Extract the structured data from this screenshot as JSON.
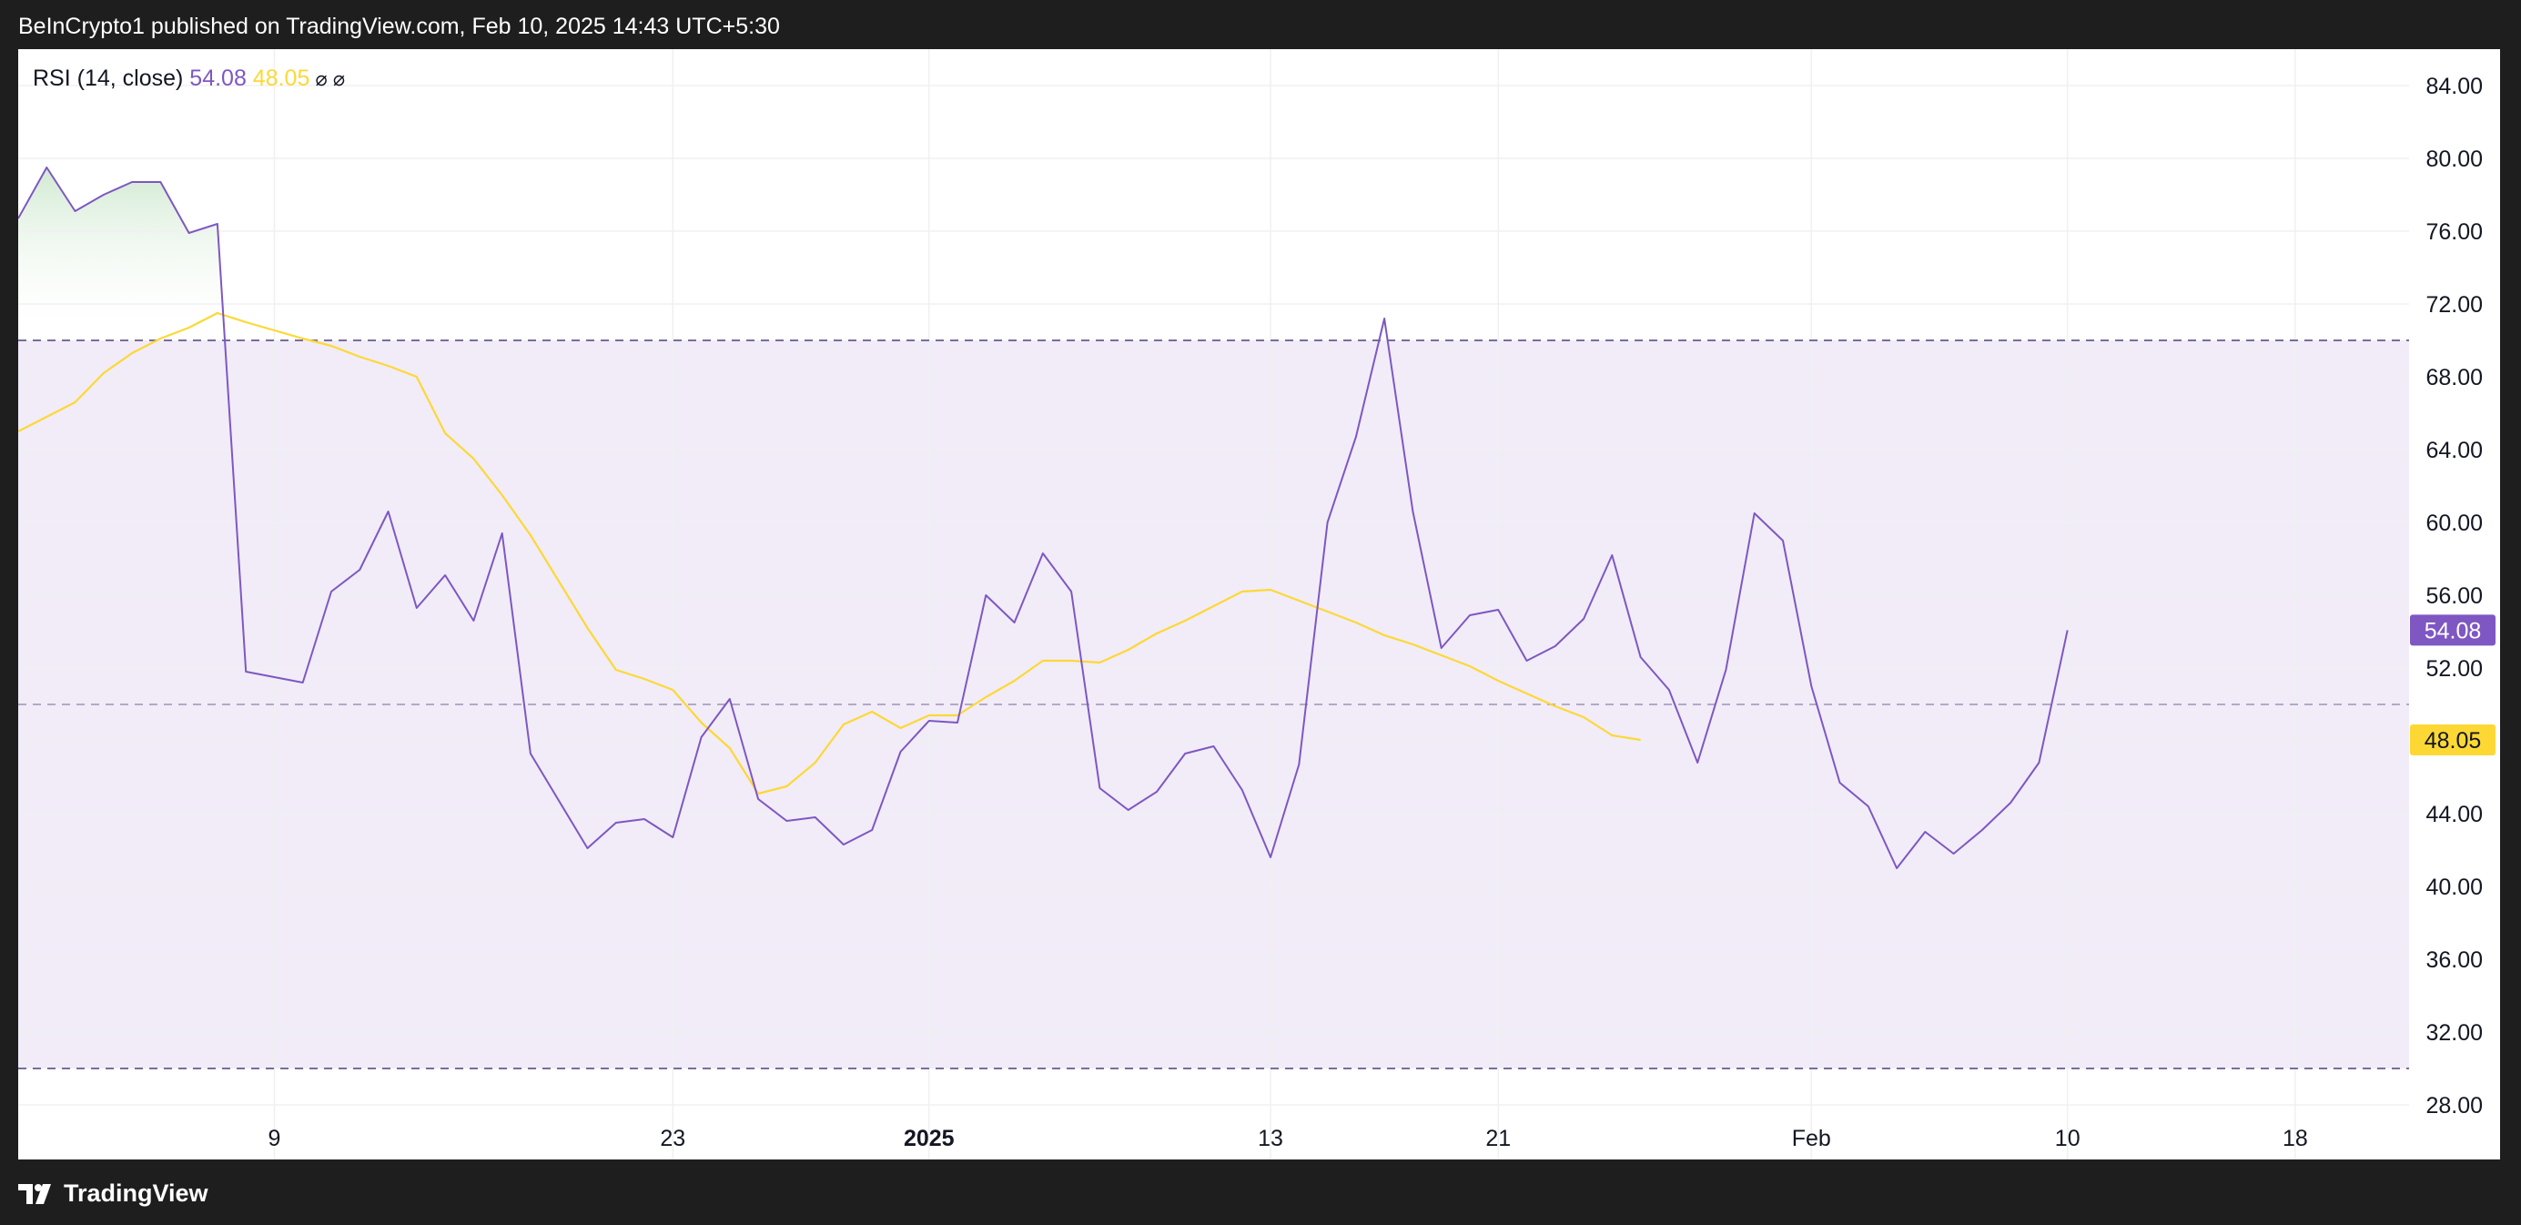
{
  "header": {
    "publisher_text": "BeInCrypto1 published on TradingView.com, Feb 10, 2025 14:43 UTC+5:30"
  },
  "footer": {
    "brand": "TradingView",
    "logo_icon": "tradingview-logo-icon"
  },
  "colors": {
    "rsi": "#7e57c2",
    "rsi_ma": "#fdd835",
    "band_fill": "#f1ecf8",
    "overbought_fill_top": "#c8e6c9",
    "grid": "#f0f0f3",
    "dashed": "#7a6d99",
    "mid_dashed": "#b3a9c9"
  },
  "chart_data": {
    "type": "line",
    "indicator_label": "RSI (14, close)",
    "current_values": {
      "rsi": "54.08",
      "rsi_ma": "48.05"
    },
    "legend_icons": [
      "hide-icon",
      "hide-icon"
    ],
    "legend_symbols": [
      "⌀",
      "⌀"
    ],
    "ylim": [
      25,
      86
    ],
    "y_ticks": [
      "84.00",
      "80.00",
      "76.00",
      "72.00",
      "68.00",
      "64.00",
      "60.00",
      "56.00",
      "52.00",
      "48.00",
      "44.00",
      "40.00",
      "36.00",
      "32.00",
      "28.00"
    ],
    "x_ticks": [
      {
        "label": "9",
        "date": "2024-12-09",
        "bold": false
      },
      {
        "label": "23",
        "date": "2024-12-23",
        "bold": false
      },
      {
        "label": "2025",
        "date": "2025-01-01",
        "bold": true
      },
      {
        "label": "13",
        "date": "2025-01-13",
        "bold": false
      },
      {
        "label": "21",
        "date": "2025-01-21",
        "bold": false
      },
      {
        "label": "Feb",
        "date": "2025-02-01",
        "bold": false
      },
      {
        "label": "10",
        "date": "2025-02-10",
        "bold": false
      },
      {
        "label": "18",
        "date": "2025-02-18",
        "bold": false
      }
    ],
    "x_range": [
      "2024-11-30",
      "2025-02-22"
    ],
    "bands": {
      "upper": 70,
      "middle": 50,
      "lower": 30
    },
    "series": [
      {
        "name": "RSI",
        "color": "#7e57c2",
        "points": [
          [
            "2024-11-30",
            76.7
          ],
          [
            "2024-12-01",
            79.5
          ],
          [
            "2024-12-02",
            77.1
          ],
          [
            "2024-12-03",
            78.0
          ],
          [
            "2024-12-04",
            78.7
          ],
          [
            "2024-12-05",
            78.7
          ],
          [
            "2024-12-06",
            75.9
          ],
          [
            "2024-12-07",
            76.4
          ],
          [
            "2024-12-08",
            51.8
          ],
          [
            "2024-12-10",
            51.2
          ],
          [
            "2024-12-11",
            56.2
          ],
          [
            "2024-12-12",
            57.4
          ],
          [
            "2024-12-13",
            60.6
          ],
          [
            "2024-12-14",
            55.3
          ],
          [
            "2024-12-15",
            57.1
          ],
          [
            "2024-12-16",
            54.6
          ],
          [
            "2024-12-17",
            59.4
          ],
          [
            "2024-12-18",
            47.3
          ],
          [
            "2024-12-20",
            42.1
          ],
          [
            "2024-12-21",
            43.5
          ],
          [
            "2024-12-22",
            43.7
          ],
          [
            "2024-12-23",
            42.7
          ],
          [
            "2024-12-24",
            48.2
          ],
          [
            "2024-12-25",
            50.3
          ],
          [
            "2024-12-26",
            44.8
          ],
          [
            "2024-12-27",
            43.6
          ],
          [
            "2024-12-28",
            43.8
          ],
          [
            "2024-12-29",
            42.3
          ],
          [
            "2024-12-30",
            43.1
          ],
          [
            "2024-12-31",
            47.4
          ],
          [
            "2025-01-01",
            49.1
          ],
          [
            "2025-01-02",
            49.0
          ],
          [
            "2025-01-03",
            56.0
          ],
          [
            "2025-01-04",
            54.5
          ],
          [
            "2025-01-05",
            58.3
          ],
          [
            "2025-01-06",
            56.2
          ],
          [
            "2025-01-07",
            45.4
          ],
          [
            "2025-01-08",
            44.2
          ],
          [
            "2025-01-09",
            45.2
          ],
          [
            "2025-01-10",
            47.3
          ],
          [
            "2025-01-11",
            47.7
          ],
          [
            "2025-01-12",
            45.3
          ],
          [
            "2025-01-13",
            41.6
          ],
          [
            "2025-01-14",
            46.7
          ],
          [
            "2025-01-15",
            60.0
          ],
          [
            "2025-01-16",
            64.7
          ],
          [
            "2025-01-17",
            71.2
          ],
          [
            "2025-01-18",
            60.6
          ],
          [
            "2025-01-19",
            53.1
          ],
          [
            "2025-01-20",
            54.9
          ],
          [
            "2025-01-21",
            55.2
          ],
          [
            "2025-01-22",
            52.4
          ],
          [
            "2025-01-23",
            53.2
          ],
          [
            "2025-01-24",
            54.7
          ],
          [
            "2025-01-25",
            58.2
          ],
          [
            "2025-01-26",
            52.6
          ],
          [
            "2025-01-27",
            50.8
          ],
          [
            "2025-01-28",
            46.8
          ],
          [
            "2025-01-29",
            51.9
          ],
          [
            "2025-01-30",
            60.5
          ],
          [
            "2025-01-31",
            59.0
          ],
          [
            "2025-02-01",
            51.0
          ],
          [
            "2025-02-02",
            45.7
          ],
          [
            "2025-02-03",
            44.4
          ],
          [
            "2025-02-04",
            41.0
          ],
          [
            "2025-02-05",
            43.0
          ],
          [
            "2025-02-06",
            41.8
          ],
          [
            "2025-02-07",
            43.1
          ],
          [
            "2025-02-08",
            44.6
          ],
          [
            "2025-02-09",
            46.8
          ],
          [
            "2025-02-10",
            54.08
          ]
        ]
      },
      {
        "name": "RSI-based MA",
        "color": "#fdd835",
        "points": [
          [
            "2024-11-30",
            65.0
          ],
          [
            "2024-12-01",
            65.8
          ],
          [
            "2024-12-02",
            66.6
          ],
          [
            "2024-12-03",
            68.2
          ],
          [
            "2024-12-04",
            69.3
          ],
          [
            "2024-12-05",
            70.1
          ],
          [
            "2024-12-06",
            70.7
          ],
          [
            "2024-12-07",
            71.5
          ],
          [
            "2024-12-08",
            71.0
          ],
          [
            "2024-12-10",
            70.1
          ],
          [
            "2024-12-11",
            69.7
          ],
          [
            "2024-12-12",
            69.1
          ],
          [
            "2024-12-13",
            68.6
          ],
          [
            "2024-12-14",
            68.0
          ],
          [
            "2024-12-15",
            64.9
          ],
          [
            "2024-12-16",
            63.5
          ],
          [
            "2024-12-17",
            61.5
          ],
          [
            "2024-12-18",
            59.3
          ],
          [
            "2024-12-20",
            54.2
          ],
          [
            "2024-12-21",
            51.9
          ],
          [
            "2024-12-22",
            51.4
          ],
          [
            "2024-12-23",
            50.8
          ],
          [
            "2024-12-24",
            49.0
          ],
          [
            "2024-12-25",
            47.6
          ],
          [
            "2024-12-26",
            45.1
          ],
          [
            "2024-12-27",
            45.5
          ],
          [
            "2024-12-28",
            46.8
          ],
          [
            "2024-12-29",
            48.9
          ],
          [
            "2024-12-30",
            49.6
          ],
          [
            "2024-12-31",
            48.7
          ],
          [
            "2025-01-01",
            49.4
          ],
          [
            "2025-01-02",
            49.4
          ],
          [
            "2025-01-03",
            50.4
          ],
          [
            "2025-01-04",
            51.3
          ],
          [
            "2025-01-05",
            52.4
          ],
          [
            "2025-01-06",
            52.4
          ],
          [
            "2025-01-07",
            52.3
          ],
          [
            "2025-01-08",
            53.0
          ],
          [
            "2025-01-09",
            53.9
          ],
          [
            "2025-01-10",
            54.6
          ],
          [
            "2025-01-11",
            55.4
          ],
          [
            "2025-01-12",
            56.2
          ],
          [
            "2025-01-13",
            56.3
          ],
          [
            "2025-01-14",
            55.7
          ],
          [
            "2025-01-15",
            55.1
          ],
          [
            "2025-01-16",
            54.5
          ],
          [
            "2025-01-17",
            53.8
          ],
          [
            "2025-01-18",
            53.3
          ],
          [
            "2025-01-19",
            52.7
          ],
          [
            "2025-01-20",
            52.1
          ],
          [
            "2025-01-21",
            51.3
          ],
          [
            "2025-01-22",
            50.6
          ],
          [
            "2025-01-23",
            49.9
          ],
          [
            "2025-01-24",
            49.3
          ],
          [
            "2025-01-25",
            48.3
          ],
          [
            "2025-01-26",
            48.05
          ]
        ]
      }
    ]
  }
}
